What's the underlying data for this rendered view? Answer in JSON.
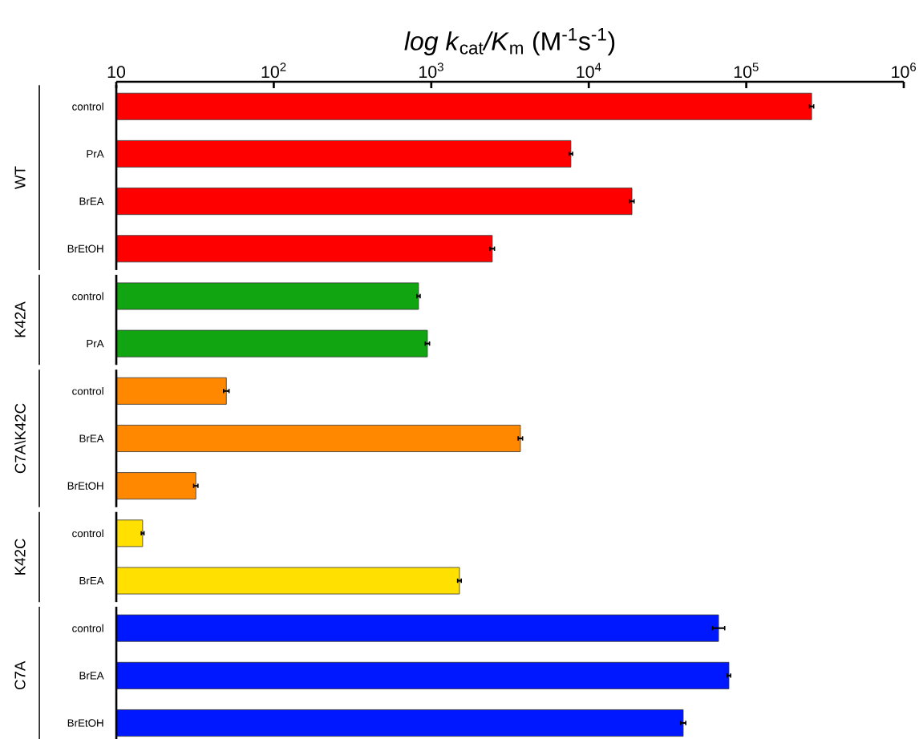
{
  "chart_data": {
    "type": "bar",
    "orientation": "horizontal",
    "log": "x",
    "xlabel": "*log k*$_{cat}$*/K*$_{m}$ (M$^{-1}$s$^{-1}$)",
    "annotations": [
      "WT",
      "K42A",
      "C7A\\K42C",
      "K42C",
      "C7A"
    ],
    "categories": [
      "control",
      "PrA",
      "BrEA",
      "BrEtOH",
      "control",
      "PrA",
      "control",
      "BrEA",
      "BrEtOH",
      "control",
      "BrEA",
      "control",
      "BrEA",
      "BrEtOH"
    ],
    "series": [
      {
        "color": "#ff0000",
        "values": [
          260000,
          7700,
          18800,
          2440,
          null,
          null,
          null,
          null,
          null,
          null,
          null,
          null,
          null,
          null
        ],
        "errors": [
          8000,
          200,
          600,
          80,
          null,
          null,
          null,
          null,
          null,
          null,
          null,
          null,
          null,
          null
        ]
      },
      {
        "color": "#11a611",
        "values": [
          null,
          null,
          null,
          null,
          830,
          945,
          null,
          null,
          null,
          null,
          null,
          null,
          null,
          null
        ],
        "errors": [
          null,
          null,
          null,
          null,
          20,
          30,
          null,
          null,
          null,
          null,
          null,
          null,
          null,
          null
        ]
      },
      {
        "color": "#ff8800",
        "values": [
          null,
          null,
          null,
          null,
          null,
          null,
          50,
          3680,
          32,
          null,
          null,
          null,
          null,
          null
        ],
        "errors": [
          null,
          null,
          null,
          null,
          null,
          null,
          2,
          120,
          1,
          null,
          null,
          null,
          null,
          null
        ]
      },
      {
        "color": "#ffe000",
        "values": [
          null,
          null,
          null,
          null,
          null,
          null,
          null,
          null,
          null,
          14.7,
          1510,
          null,
          null,
          null
        ],
        "errors": [
          null,
          null,
          null,
          null,
          null,
          null,
          null,
          null,
          null,
          0.3,
          40,
          null,
          null,
          null
        ]
      },
      {
        "color": "#0018ff",
        "values": [
          null,
          null,
          null,
          null,
          null,
          null,
          null,
          null,
          null,
          null,
          null,
          66700,
          77600,
          39800
        ],
        "errors": [
          null,
          null,
          null,
          null,
          null,
          null,
          null,
          null,
          null,
          null,
          null,
          [
            61000,
            73000
          ],
          2000,
          1500
        ]
      }
    ],
    "xlim": [
      10,
      1000000
    ],
    "xticks": [
      10,
      {
        "value": 100,
        "label": "10$^{2}$"
      },
      {
        "value": 1000,
        "label": "10$^{3}$"
      },
      {
        "value": 10000,
        "label": "10$^{4}$"
      },
      {
        "value": 100000,
        "label": "10$^{5}$"
      },
      {
        "value": 1000000,
        "label": "10$^{6}$"
      }
    ]
  }
}
